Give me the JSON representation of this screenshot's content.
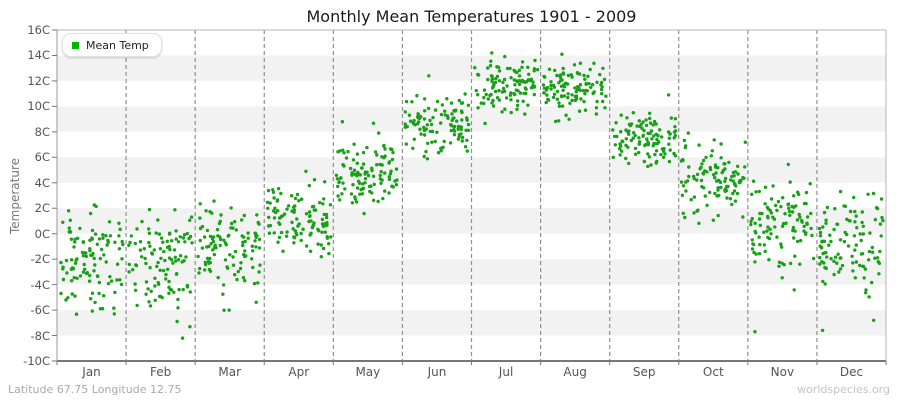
{
  "title": "Monthly Mean Temperatures 1901 - 2009",
  "legend": {
    "label": "Mean Temp"
  },
  "y_axis": {
    "title": "Temperature",
    "tick_suffix": "C"
  },
  "footer": {
    "left": "Latitude 67.75 Longitude 12.75",
    "right": "worldspecies.org"
  },
  "chart_data": {
    "type": "scatter",
    "title": "Monthly Mean Temperatures 1901 - 2009",
    "xlabel": "",
    "ylabel": "Temperature",
    "ylim": [
      -10,
      16
    ],
    "ytick_step": 2,
    "ytick_labels": [
      "16C",
      "14C",
      "12C",
      "10C",
      "8C",
      "6C",
      "4C",
      "2C",
      "0C",
      "-2C",
      "-4C",
      "-6C",
      "-8C",
      "-10C"
    ],
    "categories": [
      "Jan",
      "Feb",
      "Mar",
      "Apr",
      "May",
      "Jun",
      "Jul",
      "Aug",
      "Sep",
      "Oct",
      "Nov",
      "Dec"
    ],
    "years_range": "1901 - 2009",
    "points_per_month": 109,
    "legend_position": "top-left",
    "grid": {
      "month_separators": "dashed",
      "horizontal_bands_every_c": 2
    },
    "series": [
      {
        "name": "Mean Temp",
        "monthly_distribution": [
          {
            "month": "Jan",
            "mean": -1.9,
            "std": 1.9,
            "min": -6.6,
            "max": 2.4,
            "extra_points": [
              -6.3
            ]
          },
          {
            "month": "Feb",
            "mean": -2.4,
            "std": 2.0,
            "min": -8.2,
            "max": 2.2,
            "extra_points": [
              -8.2,
              -6.9
            ]
          },
          {
            "month": "Mar",
            "mean": -1.2,
            "std": 1.7,
            "min": -6.2,
            "max": 2.6,
            "extra_points": [
              -6.0
            ]
          },
          {
            "month": "Apr",
            "mean": 1.1,
            "std": 1.4,
            "min": -2.6,
            "max": 4.9,
            "extra_points": [
              4.9
            ]
          },
          {
            "month": "May",
            "mean": 4.6,
            "std": 1.4,
            "min": 1.0,
            "max": 8.8,
            "extra_points": [
              8.8
            ]
          },
          {
            "month": "Jun",
            "mean": 8.5,
            "std": 1.3,
            "min": 5.2,
            "max": 12.4,
            "extra_points": [
              12.4
            ]
          },
          {
            "month": "Jul",
            "mean": 11.7,
            "std": 1.2,
            "min": 8.6,
            "max": 14.2,
            "extra_points": [
              14.2
            ]
          },
          {
            "month": "Aug",
            "mean": 11.4,
            "std": 1.1,
            "min": 8.8,
            "max": 14.1,
            "extra_points": [
              14.1
            ]
          },
          {
            "month": "Sep",
            "mean": 7.6,
            "std": 1.1,
            "min": 4.6,
            "max": 10.9,
            "extra_points": [
              10.9
            ]
          },
          {
            "month": "Oct",
            "mean": 4.1,
            "std": 1.4,
            "min": -0.4,
            "max": 7.9,
            "extra_points": [
              7.9
            ]
          },
          {
            "month": "Nov",
            "mean": 0.9,
            "std": 1.8,
            "min": -7.7,
            "max": 5.6,
            "extra_points": [
              -7.7
            ]
          },
          {
            "month": "Dec",
            "mean": -0.7,
            "std": 1.9,
            "min": -7.7,
            "max": 3.9,
            "extra_points": [
              -7.6,
              -6.8
            ]
          }
        ]
      }
    ],
    "random_seed": 1901,
    "style": {
      "marker_color": "#18a018",
      "marker_radius_px": 1.7,
      "legend_marker_color": "#00b400",
      "band_color_light": "#ffffff",
      "band_color_gray": "#f2f2f2",
      "separator_color": "#8f8f8f",
      "axis_color": "#777777",
      "border_color": "#b5b5b5"
    }
  }
}
